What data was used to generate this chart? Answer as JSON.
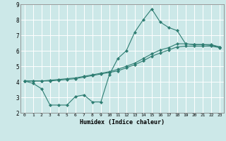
{
  "xlabel": "Humidex (Indice chaleur)",
  "xlim": [
    -0.5,
    23.5
  ],
  "ylim": [
    2,
    9
  ],
  "xticks": [
    0,
    1,
    2,
    3,
    4,
    5,
    6,
    7,
    8,
    9,
    10,
    11,
    12,
    13,
    14,
    15,
    16,
    17,
    18,
    19,
    20,
    21,
    22,
    23
  ],
  "yticks": [
    2,
    3,
    4,
    5,
    6,
    7,
    8,
    9
  ],
  "background_color": "#cce8e8",
  "grid_color": "#ffffff",
  "line_color": "#2e7d72",
  "line1_x": [
    0,
    1,
    2,
    3,
    4,
    5,
    6,
    7,
    8,
    9,
    10,
    11,
    12,
    13,
    14,
    15,
    16,
    17,
    18,
    19,
    20,
    21,
    22,
    23
  ],
  "line1_y": [
    4.05,
    3.9,
    3.55,
    2.5,
    2.5,
    2.5,
    3.05,
    3.15,
    2.7,
    2.7,
    4.45,
    5.5,
    6.0,
    7.2,
    8.0,
    8.7,
    7.85,
    7.5,
    7.3,
    6.45,
    6.4,
    6.4,
    6.35,
    6.25
  ],
  "line2_x": [
    0,
    1,
    2,
    3,
    4,
    5,
    6,
    7,
    8,
    9,
    10,
    11,
    12,
    13,
    14,
    15,
    16,
    17,
    18,
    19,
    20,
    21,
    22,
    23
  ],
  "line2_y": [
    4.05,
    4.05,
    4.05,
    4.1,
    4.15,
    4.2,
    4.25,
    4.35,
    4.45,
    4.55,
    4.65,
    4.8,
    5.0,
    5.2,
    5.5,
    5.8,
    6.05,
    6.2,
    6.45,
    6.45,
    6.4,
    6.4,
    6.4,
    6.25
  ],
  "line3_x": [
    0,
    1,
    2,
    3,
    4,
    5,
    6,
    7,
    8,
    9,
    10,
    11,
    12,
    13,
    14,
    15,
    16,
    17,
    18,
    19,
    20,
    21,
    22,
    23
  ],
  "line3_y": [
    4.05,
    4.05,
    4.05,
    4.05,
    4.1,
    4.15,
    4.2,
    4.3,
    4.4,
    4.5,
    4.6,
    4.7,
    4.9,
    5.1,
    5.35,
    5.65,
    5.85,
    6.05,
    6.25,
    6.3,
    6.3,
    6.3,
    6.3,
    6.2
  ]
}
